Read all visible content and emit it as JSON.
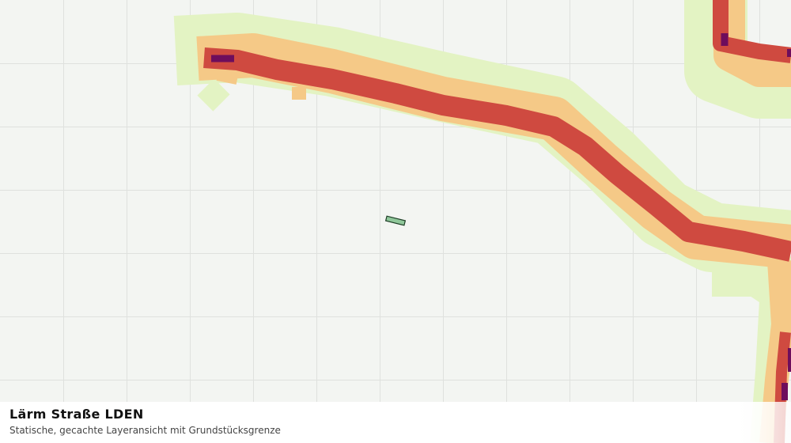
{
  "legend_panel": {
    "title": "Lärm Straße LDEN",
    "subtitle": "Statische, gecachte Layeransicht mit Grundstücksgrenze"
  }
}
